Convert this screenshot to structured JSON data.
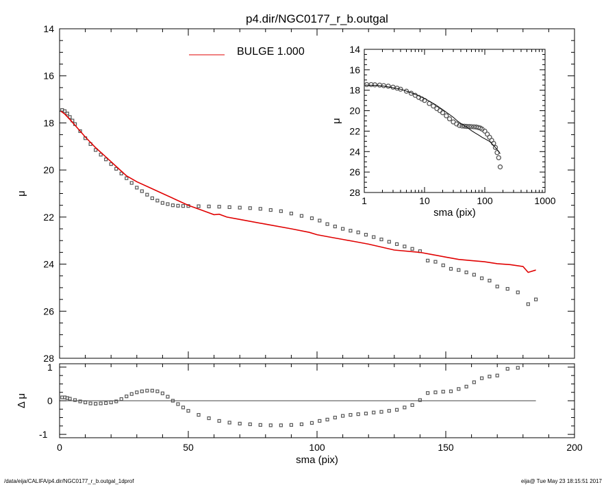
{
  "title": "p4.dir/NGC0177_r_b.outgal",
  "footer": {
    "left": "/data/eija/CALIFA/p4.dir/NGC0177_r_b.outgal_1dprof",
    "right": "eija@  Tue May 23 18:15:51 2017"
  },
  "chart_data": [
    {
      "id": "main",
      "type": "scatter",
      "ylabel": "μ",
      "xlim": [
        0,
        200
      ],
      "ylim": [
        28,
        14
      ],
      "y_inverted": true,
      "xticks": [
        0,
        50,
        100,
        150,
        200
      ],
      "yticks": [
        14,
        16,
        18,
        20,
        22,
        24,
        26,
        28
      ],
      "legend": {
        "placement": "top-center",
        "label": "BULGE  1.000",
        "color": "#e00000"
      },
      "series": [
        {
          "kind": "data-points-square",
          "color": "#555555",
          "x": [
            1,
            2,
            3,
            4,
            5,
            6,
            8,
            10,
            12,
            14,
            16,
            18,
            20,
            22,
            24,
            26,
            28,
            30,
            32,
            34,
            36,
            38,
            40,
            42,
            44,
            46,
            48,
            50,
            54,
            58,
            62,
            66,
            70,
            74,
            78,
            82,
            86,
            90,
            94,
            98,
            101,
            104,
            107,
            110,
            113,
            116,
            119,
            122,
            125,
            128,
            131,
            134,
            137,
            140,
            143,
            146,
            149,
            152,
            155,
            158,
            161,
            164,
            167,
            170,
            174,
            178,
            182,
            185
          ],
          "y": [
            17.45,
            17.5,
            17.6,
            17.75,
            17.9,
            18.05,
            18.35,
            18.65,
            18.9,
            19.15,
            19.35,
            19.55,
            19.75,
            19.95,
            20.15,
            20.35,
            20.55,
            20.75,
            20.9,
            21.05,
            21.2,
            21.3,
            21.4,
            21.45,
            21.5,
            21.52,
            21.53,
            21.53,
            21.54,
            21.55,
            21.56,
            21.58,
            21.6,
            21.62,
            21.65,
            21.7,
            21.75,
            21.85,
            21.95,
            22.05,
            22.15,
            22.3,
            22.4,
            22.5,
            22.58,
            22.65,
            22.75,
            22.85,
            22.95,
            23.05,
            23.15,
            23.25,
            23.35,
            23.45,
            23.85,
            23.9,
            24.05,
            24.2,
            24.25,
            24.35,
            24.45,
            24.6,
            24.7,
            24.95,
            25.05,
            25.2,
            25.7,
            25.5
          ]
        },
        {
          "kind": "model-line",
          "name": "BULGE  1.000",
          "color": "#e00000",
          "x": [
            0.5,
            2,
            4,
            6,
            8,
            10,
            14,
            18,
            22,
            26,
            30,
            35,
            40,
            45,
            50,
            55,
            60,
            62,
            65,
            70,
            80,
            90,
            97,
            100,
            105,
            110,
            115,
            120,
            130,
            140,
            145,
            150,
            155,
            160,
            165,
            170,
            175,
            180,
            182,
            185
          ],
          "y": [
            17.5,
            17.62,
            17.85,
            18.1,
            18.35,
            18.6,
            19.05,
            19.45,
            19.85,
            20.25,
            20.5,
            20.75,
            21.0,
            21.25,
            21.5,
            21.7,
            21.9,
            21.88,
            22.0,
            22.1,
            22.3,
            22.5,
            22.65,
            22.75,
            22.85,
            22.95,
            23.05,
            23.15,
            23.4,
            23.5,
            23.6,
            23.7,
            23.8,
            23.85,
            23.9,
            23.98,
            24.02,
            24.1,
            24.35,
            24.25
          ]
        }
      ]
    },
    {
      "id": "residual",
      "type": "scatter",
      "xlabel": "sma (pix)",
      "ylabel": "Δ μ",
      "xlim": [
        0,
        200
      ],
      "ylim": [
        -1.1,
        1.1
      ],
      "xticks": [
        0,
        50,
        100,
        150,
        200
      ],
      "yticks": [
        -1,
        0,
        1
      ],
      "zero_line": {
        "from": 0,
        "to": 185
      },
      "series": [
        {
          "kind": "residual-points",
          "color": "#555555",
          "x": [
            1,
            2,
            3,
            4,
            6,
            8,
            10,
            12,
            14,
            16,
            18,
            20,
            22,
            24,
            26,
            28,
            30,
            32,
            34,
            36,
            38,
            40,
            42,
            44,
            46,
            48,
            50,
            54,
            58,
            62,
            66,
            70,
            74,
            78,
            82,
            86,
            90,
            94,
            98,
            101,
            104,
            107,
            110,
            113,
            116,
            119,
            122,
            125,
            128,
            131,
            134,
            137,
            140,
            143,
            146,
            149,
            152,
            155,
            158,
            161,
            164,
            167,
            170,
            174,
            178
          ],
          "y": [
            0.1,
            0.1,
            0.08,
            0.06,
            0.02,
            -0.02,
            -0.05,
            -0.08,
            -0.09,
            -0.08,
            -0.07,
            -0.05,
            -0.02,
            0.05,
            0.13,
            0.2,
            0.25,
            0.28,
            0.3,
            0.3,
            0.28,
            0.22,
            0.12,
            0.0,
            -0.1,
            -0.2,
            -0.3,
            -0.42,
            -0.52,
            -0.6,
            -0.65,
            -0.68,
            -0.7,
            -0.72,
            -0.73,
            -0.73,
            -0.72,
            -0.7,
            -0.66,
            -0.6,
            -0.56,
            -0.5,
            -0.45,
            -0.42,
            -0.4,
            -0.38,
            -0.35,
            -0.33,
            -0.3,
            -0.27,
            -0.2,
            -0.13,
            0.02,
            0.23,
            0.25,
            0.27,
            0.28,
            0.35,
            0.42,
            0.55,
            0.67,
            0.72,
            0.75,
            0.95,
            0.98
          ]
        }
      ]
    },
    {
      "id": "inset",
      "type": "scatter",
      "xlabel": "sma (pix)",
      "ylabel": "μ",
      "x_log": true,
      "xlim": [
        1,
        1000
      ],
      "ylim": [
        28,
        14
      ],
      "y_inverted": true,
      "xticks": [
        1,
        10,
        100,
        1000
      ],
      "yticks": [
        14,
        16,
        18,
        20,
        22,
        24,
        26,
        28
      ],
      "series": [
        {
          "kind": "data-points-circle",
          "color": "#555555",
          "x": [
            1.1,
            1.3,
            1.5,
            1.8,
            2.1,
            2.5,
            3,
            3.5,
            4,
            5,
            6,
            7,
            8,
            9,
            10,
            12,
            14,
            16,
            18,
            20,
            23,
            26,
            30,
            34,
            38,
            42,
            46,
            50,
            55,
            60,
            66,
            72,
            78,
            84,
            90,
            100,
            110,
            120,
            130,
            140,
            150,
            160,
            170,
            180
          ],
          "y": [
            17.45,
            17.45,
            17.47,
            17.5,
            17.55,
            17.6,
            17.7,
            17.8,
            17.9,
            18.1,
            18.3,
            18.5,
            18.7,
            18.85,
            19.0,
            19.3,
            19.55,
            19.8,
            20.0,
            20.2,
            20.5,
            20.8,
            21.1,
            21.3,
            21.45,
            21.5,
            21.52,
            21.54,
            21.55,
            21.56,
            21.58,
            21.6,
            21.65,
            21.7,
            21.8,
            22.0,
            22.3,
            22.6,
            22.9,
            23.2,
            23.6,
            24.1,
            24.6,
            25.5
          ]
        },
        {
          "kind": "model-line",
          "color": "#000000",
          "x": [
            1.1,
            1.5,
            2,
            3,
            4,
            6,
            8,
            10,
            15,
            20,
            25,
            30,
            35,
            40,
            50,
            60,
            70,
            80,
            90,
            100,
            120,
            140,
            160,
            180
          ],
          "y": [
            17.5,
            17.52,
            17.58,
            17.75,
            17.9,
            18.25,
            18.55,
            18.8,
            19.4,
            19.9,
            20.3,
            20.65,
            21.0,
            21.25,
            21.6,
            21.95,
            22.2,
            22.4,
            22.6,
            22.75,
            23.0,
            23.4,
            23.8,
            24.2
          ]
        }
      ]
    }
  ]
}
